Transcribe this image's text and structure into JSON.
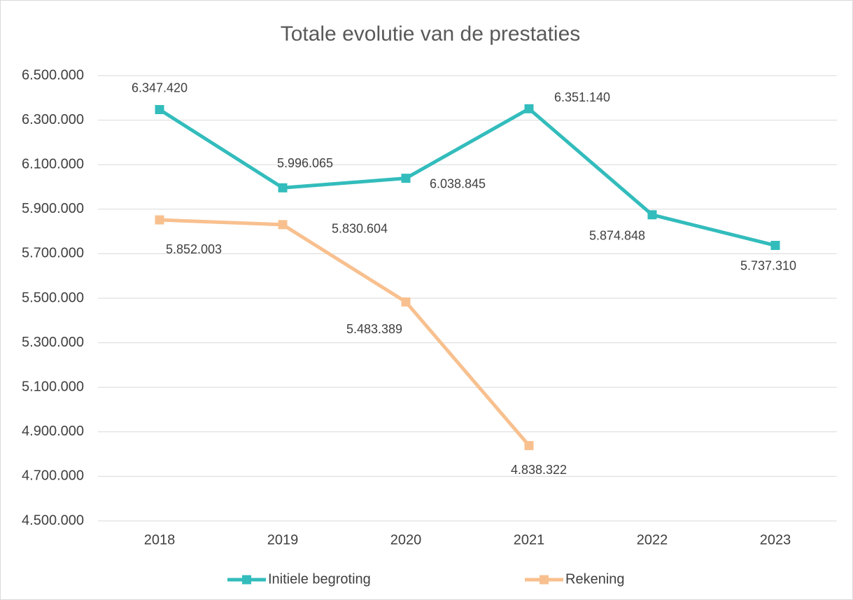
{
  "chart_data": {
    "type": "line",
    "title": "Totale evolutie van de prestaties",
    "categories": [
      "2018",
      "2019",
      "2020",
      "2021",
      "2022",
      "2023"
    ],
    "series": [
      {
        "name": "Initiele begroting",
        "color": "#33bcbc",
        "values": [
          6347420,
          5996065,
          6038845,
          6351140,
          5874848,
          5737310
        ],
        "value_labels": [
          "6.347.420",
          "5.996.065",
          "6.038.845",
          "6.351.140",
          "5.874.848",
          "5.737.310"
        ]
      },
      {
        "name": "Rekening",
        "color": "#f8c08f",
        "values": [
          5852003,
          5830604,
          5483389,
          4838322,
          null,
          null
        ],
        "value_labels": [
          "5.852.003",
          "5.830.604",
          "5.483.389",
          "4.838.322",
          null,
          null
        ]
      }
    ],
    "ylim": [
      4500000,
      6500000
    ],
    "yticks": [
      {
        "value": 4500000,
        "label": "4.500.000"
      },
      {
        "value": 4700000,
        "label": "4.700.000"
      },
      {
        "value": 4900000,
        "label": "4.900.000"
      },
      {
        "value": 5100000,
        "label": "5.100.000"
      },
      {
        "value": 5300000,
        "label": "5.300.000"
      },
      {
        "value": 5500000,
        "label": "5.500.000"
      },
      {
        "value": 5700000,
        "label": "5.700.000"
      },
      {
        "value": 5900000,
        "label": "5.900.000"
      },
      {
        "value": 6100000,
        "label": "6.100.000"
      },
      {
        "value": 6300000,
        "label": "6.300.000"
      },
      {
        "value": 6500000,
        "label": "6.500.000"
      }
    ],
    "grid": true,
    "legend": "bottom"
  }
}
